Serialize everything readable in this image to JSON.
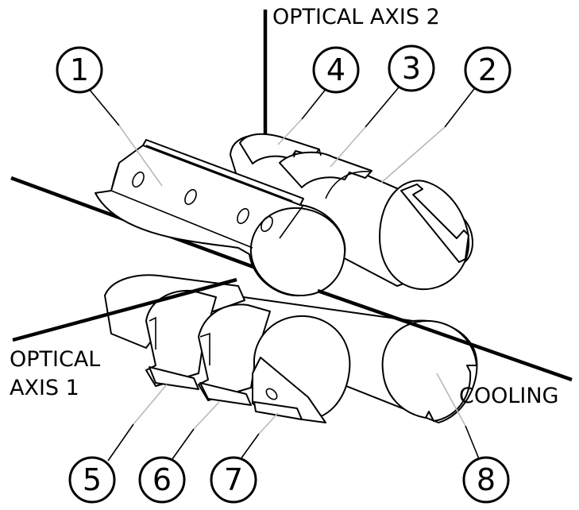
{
  "labels": {
    "optical_axis_2": "OPTICAL AXIS 2",
    "optical_axis_1_line1": "OPTICAL",
    "optical_axis_1_line2": "AXIS 1",
    "cooling": "COOLING"
  },
  "callouts": [
    "1",
    "2",
    "3",
    "4",
    "5",
    "6",
    "7",
    "8"
  ]
}
